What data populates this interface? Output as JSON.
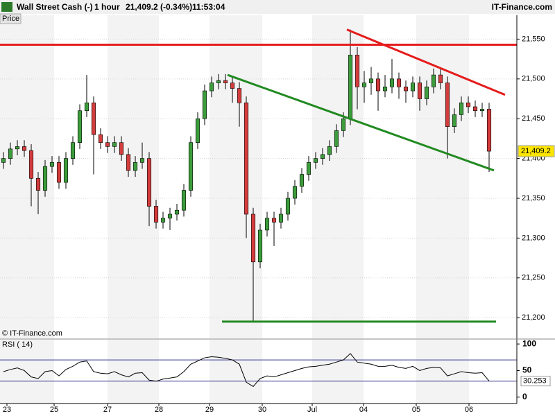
{
  "header": {
    "instrument": "Wall Street Cash (-)",
    "interval": "1 hour",
    "last": "21,409.2 (-0.34%)",
    "time": "11:53:04",
    "brand": "IT-Finance.com"
  },
  "chart_data": [
    {
      "type": "candlestick",
      "title": "Price",
      "watermark": "© IT-Finance.com",
      "x": [
        0,
        1,
        2,
        3,
        4,
        5,
        6,
        7,
        8,
        9,
        10,
        11,
        12,
        13,
        14,
        15,
        16,
        17,
        18,
        19,
        20,
        21,
        22,
        23,
        24,
        25,
        26,
        27,
        28,
        29,
        30,
        31,
        32,
        33,
        34,
        35,
        36,
        37,
        38,
        39,
        40,
        41,
        42,
        43,
        44,
        45,
        46,
        47,
        48,
        49,
        50,
        51,
        52,
        53,
        54,
        55,
        56,
        57,
        58,
        59,
        60,
        61,
        62,
        63,
        64,
        65,
        66,
        67,
        68,
        69,
        70
      ],
      "open": [
        21395,
        21400,
        21412,
        21415,
        21410,
        21375,
        21360,
        21390,
        21395,
        21370,
        21400,
        21420,
        21460,
        21470,
        21430,
        21420,
        21415,
        21420,
        21405,
        21385,
        21395,
        21400,
        21340,
        21320,
        21325,
        21330,
        21335,
        21360,
        21420,
        21450,
        21485,
        21495,
        21498,
        21495,
        21488,
        21470,
        21330,
        21270,
        21310,
        21325,
        21320,
        21330,
        21350,
        21365,
        21380,
        21395,
        21400,
        21405,
        21415,
        21435,
        21450,
        21530,
        21490,
        21495,
        21500,
        21485,
        21490,
        21500,
        21490,
        21485,
        21495,
        21475,
        21490,
        21505,
        21495,
        21440,
        21455,
        21470,
        21465,
        21460,
        21462
      ],
      "high": [
        21408,
        21420,
        21423,
        21423,
        21418,
        21383,
        21398,
        21403,
        21403,
        21408,
        21428,
        21468,
        21505,
        21478,
        21438,
        21428,
        21428,
        21428,
        21413,
        21403,
        21420,
        21408,
        21348,
        21333,
        21338,
        21343,
        21368,
        21428,
        21458,
        21493,
        21503,
        21506,
        21506,
        21503,
        21496,
        21478,
        21338,
        21318,
        21333,
        21333,
        21338,
        21358,
        21373,
        21388,
        21403,
        21408,
        21413,
        21423,
        21443,
        21458,
        21562,
        21540,
        21510,
        21515,
        21508,
        21505,
        21525,
        21508,
        21498,
        21503,
        21503,
        21498,
        21513,
        21513,
        21503,
        21463,
        21478,
        21478,
        21473,
        21470,
        21470
      ],
      "low": [
        21387,
        21392,
        21404,
        21402,
        21340,
        21330,
        21352,
        21382,
        21362,
        21362,
        21392,
        21412,
        21452,
        21380,
        21412,
        21407,
        21407,
        21397,
        21377,
        21377,
        21387,
        21315,
        21312,
        21312,
        21310,
        21322,
        21327,
        21352,
        21412,
        21442,
        21477,
        21487,
        21487,
        21470,
        21440,
        21300,
        21195,
        21262,
        21302,
        21290,
        21312,
        21322,
        21342,
        21357,
        21372,
        21387,
        21392,
        21397,
        21407,
        21427,
        21442,
        21462,
        21470,
        21480,
        21460,
        21477,
        21482,
        21475,
        21470,
        21477,
        21460,
        21467,
        21482,
        21487,
        21400,
        21432,
        21447,
        21457,
        21452,
        21452,
        21383
      ],
      "close": [
        21400,
        21412,
        21415,
        21410,
        21375,
        21360,
        21390,
        21395,
        21370,
        21400,
        21420,
        21460,
        21470,
        21430,
        21420,
        21415,
        21420,
        21405,
        21385,
        21395,
        21400,
        21340,
        21320,
        21325,
        21330,
        21335,
        21360,
        21420,
        21450,
        21485,
        21495,
        21498,
        21495,
        21488,
        21470,
        21330,
        21270,
        21310,
        21325,
        21320,
        21330,
        21350,
        21365,
        21380,
        21395,
        21400,
        21405,
        21415,
        21435,
        21450,
        21530,
        21490,
        21495,
        21500,
        21485,
        21490,
        21500,
        21490,
        21485,
        21495,
        21475,
        21490,
        21505,
        21495,
        21440,
        21455,
        21470,
        21465,
        21460,
        21462,
        21409.2
      ],
      "last_label": "21,409.2",
      "up_color": "#3c9c3c",
      "down_color": "#d23c3c",
      "xlim": [
        -0.5,
        74
      ],
      "xticks": [
        {
          "value": 0.5,
          "label": "23"
        },
        {
          "value": 7.3,
          "label": "25"
        },
        {
          "value": 15,
          "label": "27"
        },
        {
          "value": 22.4,
          "label": "28"
        },
        {
          "value": 29.7,
          "label": "29"
        },
        {
          "value": 37.3,
          "label": "30"
        },
        {
          "value": 44.5,
          "label": "Jul"
        },
        {
          "value": 51.9,
          "label": "04"
        },
        {
          "value": 59.5,
          "label": "05"
        },
        {
          "value": 67.1,
          "label": "06"
        }
      ],
      "ylim": [
        21174,
        21580
      ],
      "yticks": [
        {
          "value": 21200,
          "label": "21,200"
        },
        {
          "value": 21250,
          "label": "21,250"
        },
        {
          "value": 21300,
          "label": "21,300"
        },
        {
          "value": 21350,
          "label": "21,350"
        },
        {
          "value": 21400,
          "label": "21,400"
        },
        {
          "value": 21450,
          "label": "21,450"
        },
        {
          "value": 21500,
          "label": "21,500"
        },
        {
          "value": 21550,
          "label": "21,550"
        }
      ],
      "grid": true,
      "lines": [
        {
          "color": "#e51c1c",
          "x": [
            -0.5,
            74
          ],
          "y": [
            21543,
            21543
          ]
        },
        {
          "color": "#e51c1c",
          "x": [
            49.5,
            72.3
          ],
          "y": [
            21562,
            21480
          ]
        },
        {
          "color": "#218a21",
          "x": [
            32.3,
            70.7
          ],
          "y": [
            21505,
            21385
          ]
        },
        {
          "color": "#218a21",
          "x": [
            31.5,
            71
          ],
          "y": [
            21195,
            21195
          ]
        }
      ]
    },
    {
      "type": "line",
      "title": "RSI ( 14)",
      "color": "#000000",
      "values": [
        48,
        52,
        55,
        50,
        38,
        35,
        48,
        50,
        40,
        52,
        58,
        66,
        68,
        48,
        45,
        44,
        48,
        42,
        38,
        45,
        46,
        32,
        30,
        34,
        36,
        38,
        48,
        62,
        68,
        74,
        76,
        75,
        73,
        70,
        62,
        28,
        20,
        35,
        40,
        38,
        42,
        46,
        50,
        54,
        57,
        58,
        60,
        62,
        66,
        70,
        82,
        66,
        64,
        62,
        58,
        58,
        60,
        56,
        54,
        58,
        50,
        54,
        56,
        55,
        40,
        44,
        48,
        46,
        45,
        46,
        30.253
      ],
      "ylim": [
        -12,
        108
      ],
      "yticks": [
        0,
        50,
        100
      ],
      "hlines": [
        70,
        30
      ]
    }
  ]
}
